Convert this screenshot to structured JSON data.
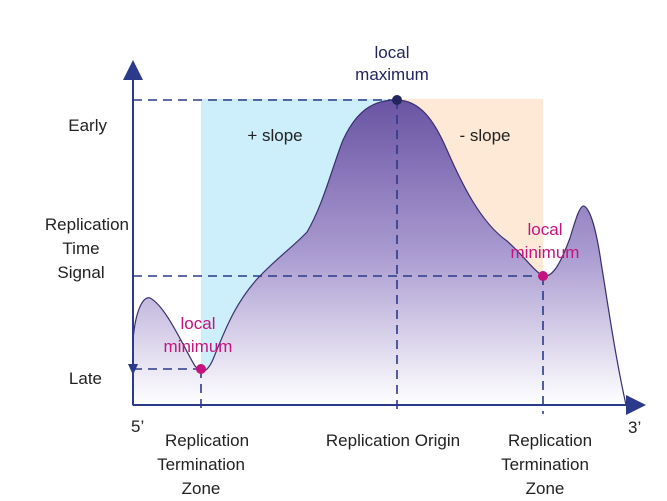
{
  "y_axis": {
    "label_lines": [
      "Replication",
      "Time",
      "Signal"
    ],
    "top_label": "Early",
    "bottom_label": "Late"
  },
  "x_axis": {
    "start_label": "5’",
    "end_label": "3’"
  },
  "regions": {
    "positive_slope": "+ slope",
    "negative_slope": "- slope"
  },
  "annotations": {
    "local_max": [
      "local",
      "maximum"
    ],
    "local_min_left": [
      "local",
      "minimum"
    ],
    "local_min_right": [
      "local",
      "minimum"
    ]
  },
  "bottom_labels": {
    "left_zone": [
      "Replication",
      "Termination",
      "Zone"
    ],
    "origin": "Replication Origin",
    "right_zone": [
      "Replication",
      "Termination",
      "Zone"
    ]
  },
  "colors": {
    "axis": "#2b3a8a",
    "dashed": "#2b3a8a",
    "curve_fill_top": "#6e58a6",
    "curve_fill_bottom": "#ffffff",
    "positive_region": "#cdeefb",
    "negative_region": "#fde9d6",
    "local_max_marker": "#23235e",
    "local_min_marker": "#c5137f"
  }
}
